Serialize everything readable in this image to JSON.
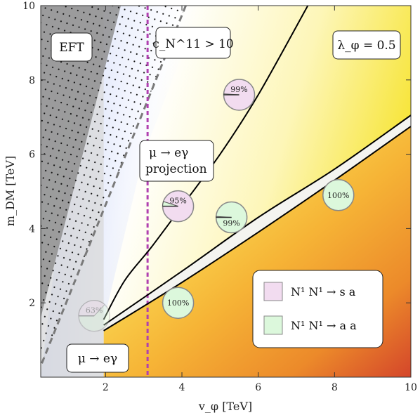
{
  "chart_data": {
    "type": "contour",
    "xlabel": "v_φ  [TeV]",
    "ylabel": "m_DM  [TeV]",
    "xlim": [
      0.3,
      10
    ],
    "ylim": [
      0,
      10
    ],
    "x_ticks": [
      2,
      4,
      6,
      8,
      10
    ],
    "y_ticks": [
      2,
      4,
      6,
      8,
      10
    ],
    "region_labels": {
      "eft": "EFT",
      "cn": "c_N^11 > 10",
      "lambda": "λ_φ = 0.5",
      "mu_proj_line1": "μ → eγ",
      "mu_proj_line2": "projection",
      "mu_bottom": "μ → eγ"
    },
    "dashed_projection_x": 3.1,
    "mu_excluded_x": 1.95,
    "curves": {
      "upper_branch": [
        [
          1.95,
          1.55
        ],
        [
          2.5,
          2.6
        ],
        [
          3.2,
          3.5
        ],
        [
          4.0,
          4.6
        ],
        [
          5.0,
          6.0
        ],
        [
          6.0,
          7.6
        ],
        [
          7.3,
          10
        ]
      ],
      "lower_branch": [
        [
          1.95,
          1.4
        ],
        [
          4.0,
          2.85
        ],
        [
          6.0,
          4.3
        ],
        [
          8.0,
          5.6
        ],
        [
          10.0,
          7.05
        ]
      ],
      "band_lower": [
        [
          1.95,
          1.25
        ],
        [
          4.0,
          2.55
        ],
        [
          6.0,
          3.9
        ],
        [
          8.0,
          5.3
        ],
        [
          10.0,
          6.75
        ]
      ]
    },
    "pies": [
      {
        "x": 5.5,
        "y": 7.6,
        "label": "99%",
        "channel": "sa",
        "fraction": 0.99
      },
      {
        "x": 3.9,
        "y": 4.6,
        "label": "95%",
        "channel": "sa",
        "fraction": 0.95
      },
      {
        "x": 5.3,
        "y": 4.3,
        "label": "99%",
        "channel": "aa",
        "fraction": 0.99
      },
      {
        "x": 8.1,
        "y": 4.9,
        "label": "100%",
        "channel": "aa",
        "fraction": 1.0
      },
      {
        "x": 3.9,
        "y": 2.0,
        "label": "100%",
        "channel": "aa",
        "fraction": 1.0
      },
      {
        "x": 1.7,
        "y": 1.65,
        "label": "63%",
        "channel": "aa",
        "fraction": 0.63
      }
    ],
    "legend": {
      "placement": "bottom-right",
      "entries": [
        {
          "label": "N¹ N¹ → s a",
          "color": "#f2dcf0"
        },
        {
          "label": "N¹ N¹ → a a",
          "color": "#dcf8dc"
        }
      ]
    },
    "colors": {
      "pie_sa": "#f2dcf0",
      "pie_aa": "#dcf8dc",
      "dashed_projection": "#b040b0",
      "eft_gray": "#8f8f8f"
    }
  }
}
